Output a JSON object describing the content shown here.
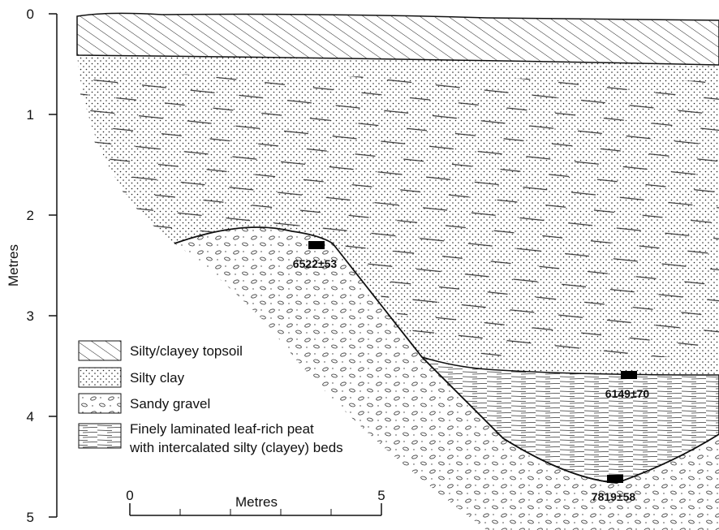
{
  "depth_axis": {
    "label": "Metres",
    "ticks": [
      0,
      1,
      2,
      3,
      4,
      5
    ]
  },
  "scale_bar": {
    "label": "Metres",
    "ticks": [
      0,
      5
    ]
  },
  "samples": [
    {
      "label": "6522±53"
    },
    {
      "label": "6149±70"
    },
    {
      "label": "7819±58"
    }
  ],
  "legend": [
    {
      "label": "Silty/clayey topsoil"
    },
    {
      "label": "Silty clay"
    },
    {
      "label": "Sandy gravel"
    },
    {
      "label": "Finely laminated leaf-rich peat",
      "label2": "with intercalated silty (clayey) beds"
    }
  ]
}
